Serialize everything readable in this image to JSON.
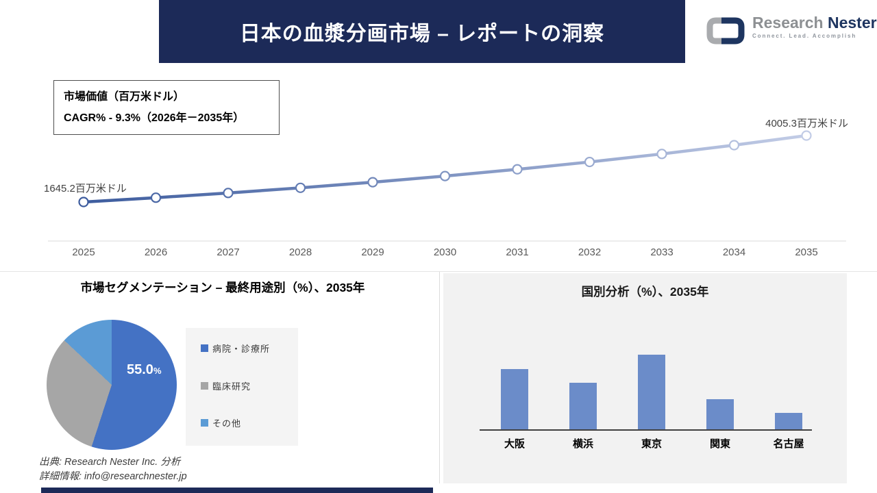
{
  "header": {
    "title": "日本の血漿分画市場 – レポートの洞察",
    "logo": {
      "brand_research": "Research",
      "brand_nester": "Nester",
      "tagline": "Connect. Lead. Accomplish"
    }
  },
  "info_box": {
    "line1": "市場価値（百万米ドル）",
    "line2": "CAGR% - 9.3%（2026年－2035年）"
  },
  "chart_data": [
    {
      "type": "line",
      "title": "市場価値（百万米ドル）",
      "cagr": "CAGR% - 9.3%（2026年－2035年）",
      "x": [
        2025,
        2026,
        2027,
        2028,
        2029,
        2030,
        2031,
        2032,
        2033,
        2034,
        2035
      ],
      "values": [
        1645.2,
        1798.3,
        1965.7,
        2148.6,
        2348.6,
        2567.2,
        2806.1,
        3067.3,
        3352.8,
        3664.8,
        4005.3
      ],
      "first_point_label": "1645.2百万米ドル",
      "last_point_label": "4005.3百万米ドル",
      "ylim": [
        1500,
        4200
      ],
      "grid": false,
      "line_color_start": "#3D5C9E",
      "line_color_end": "#C2CCE6",
      "marker": "circle-white-fill"
    },
    {
      "type": "pie",
      "title": "市場セグメンテーション – 最終用途別（%）、2035年",
      "labels": [
        "病院・診療所",
        "臨床研究",
        "その他"
      ],
      "values": [
        55.0,
        32.0,
        13.0
      ],
      "colors": [
        "#4472C4",
        "#A6A6A6",
        "#5B9BD5"
      ],
      "data_label": {
        "value": "55.0",
        "unit": "%"
      },
      "legend_position": "right"
    },
    {
      "type": "bar",
      "title": "国別分析（%）、2035年",
      "categories": [
        "大阪",
        "横浜",
        "東京",
        "関東",
        "名古屋"
      ],
      "values": [
        26,
        20,
        32,
        13,
        7
      ],
      "ylim": [
        0,
        35
      ],
      "grid": false,
      "color": "#6B8CC9"
    }
  ],
  "footer": {
    "source_line": "出典: Research Nester Inc. 分析",
    "contact_line": "詳細情報: info@researchnester.jp"
  },
  "colors": {
    "navy": "#1C2A58",
    "panel_gray": "#F2F2F2",
    "axis_gray": "#D9D9D9",
    "tick_gray": "#595959"
  }
}
